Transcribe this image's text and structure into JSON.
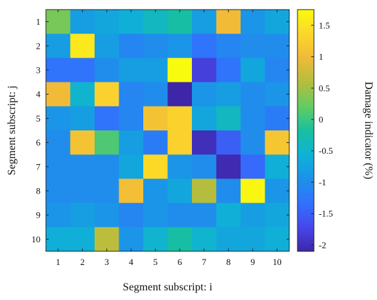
{
  "chart_data": {
    "type": "heatmap",
    "xlabel": "Segment subscript: i",
    "ylabel": "Segment subscript: j",
    "colorbar_label": "Damage indicator (%)",
    "x_categories": [
      "1",
      "2",
      "3",
      "4",
      "5",
      "6",
      "7",
      "8",
      "9",
      "10"
    ],
    "y_categories": [
      "1",
      "2",
      "3",
      "4",
      "5",
      "6",
      "7",
      "8",
      "9",
      "10"
    ],
    "color_range": [
      -2.1,
      1.75
    ],
    "colormap": "parula",
    "colorbar_ticks": [
      "1.5",
      "1",
      "0.5",
      "0",
      "-0.5",
      "-1",
      "-1.5",
      "-2"
    ],
    "colorbar_tick_values": [
      1.5,
      1,
      0.5,
      0,
      -0.5,
      -1,
      -1.5,
      -2
    ],
    "values": [
      [
        0.3,
        -0.8,
        -0.7,
        -0.6,
        -0.4,
        -0.2,
        -0.8,
        1.0,
        -0.9,
        -0.7
      ],
      [
        -0.8,
        1.55,
        -0.8,
        -1.1,
        -1.0,
        -0.9,
        -1.3,
        -1.1,
        -1.0,
        -1.0
      ],
      [
        -1.3,
        -1.3,
        -1.0,
        -0.8,
        -0.8,
        1.85,
        -1.8,
        -1.3,
        -0.7,
        -1.1
      ],
      [
        1.0,
        -0.5,
        1.3,
        -1.1,
        -1.0,
        -2.1,
        -0.9,
        -0.8,
        -1.0,
        -0.9
      ],
      [
        -0.9,
        -0.8,
        -1.3,
        -1.1,
        1.1,
        1.3,
        -0.7,
        -0.4,
        -1.0,
        -1.2
      ],
      [
        -1.0,
        1.1,
        0.1,
        -0.8,
        -1.2,
        1.3,
        -2.0,
        -1.5,
        -1.0,
        1.15
      ],
      [
        -1.0,
        -1.0,
        -1.0,
        -0.7,
        1.4,
        -0.9,
        -1.0,
        -2.05,
        -1.4,
        -0.6
      ],
      [
        -1.0,
        -1.0,
        -1.0,
        1.05,
        -0.9,
        -0.7,
        0.6,
        -1.0,
        1.7,
        -0.9
      ],
      [
        -0.9,
        -0.8,
        -0.9,
        -1.1,
        -0.9,
        -1.0,
        -1.0,
        -0.6,
        -0.8,
        -0.7
      ],
      [
        -0.6,
        -0.6,
        0.65,
        -0.9,
        -0.5,
        -0.2,
        -0.5,
        -0.7,
        -0.7,
        -0.6
      ]
    ]
  }
}
